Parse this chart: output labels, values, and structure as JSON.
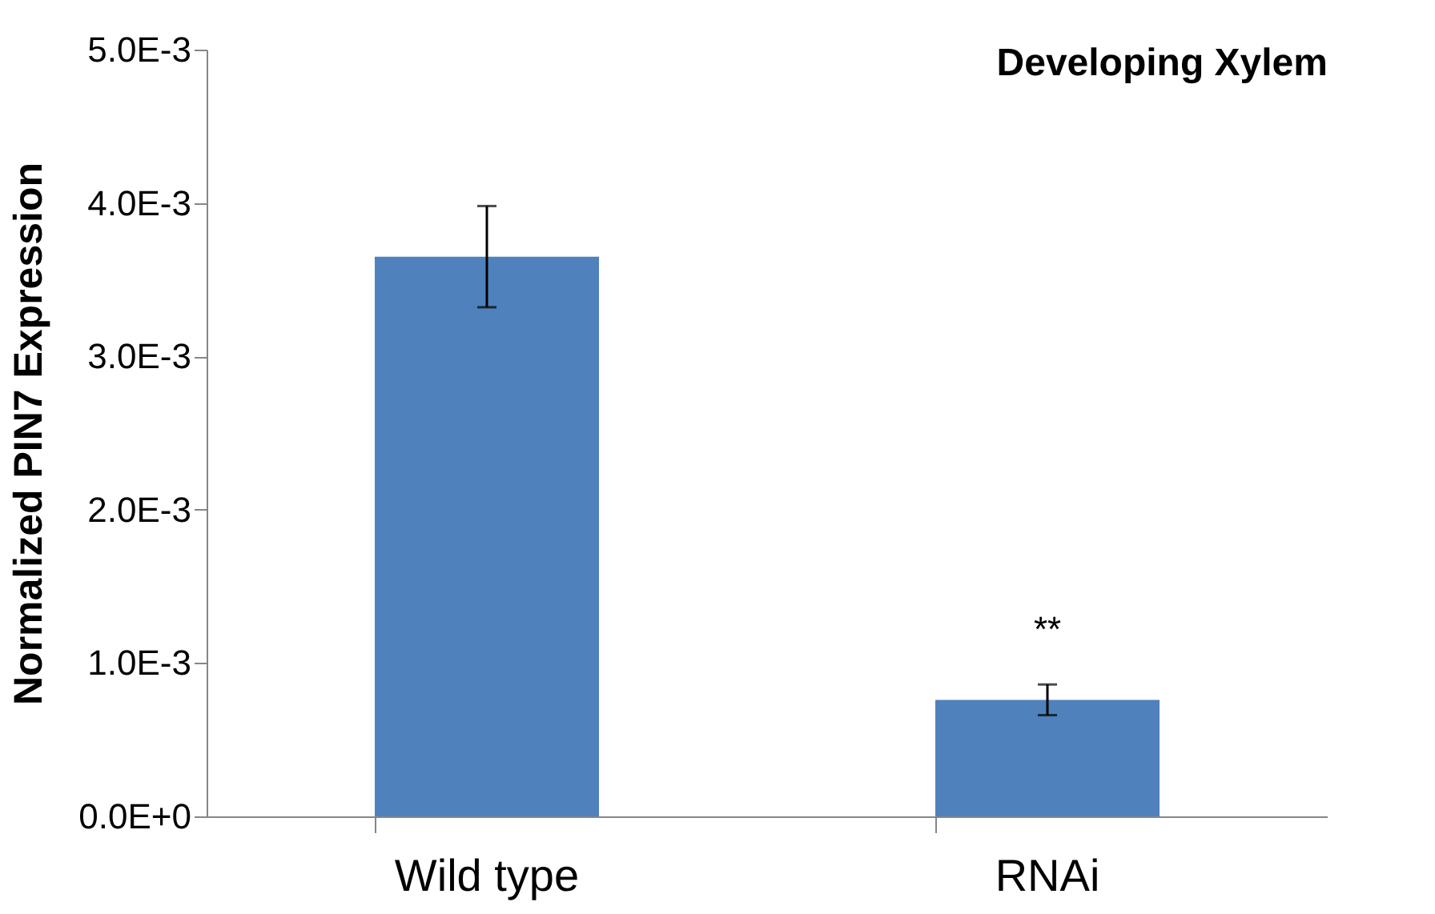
{
  "chart_data": {
    "type": "bar",
    "title": "Developing Xylem",
    "ylabel": "Normalized PIN7 Expression",
    "categories": [
      "Wild type",
      "RNAi"
    ],
    "values": [
      0.00365,
      0.00076
    ],
    "errors": [
      0.00033,
      0.0001
    ],
    "color": "#4f81bd",
    "ylim": [
      0,
      0.005
    ],
    "yticks": [
      {
        "value": 0,
        "label": "0.0E+0"
      },
      {
        "value": 0.001,
        "label": "1.0E-3"
      },
      {
        "value": 0.002,
        "label": "2.0E-3"
      },
      {
        "value": 0.003,
        "label": "3.0E-3"
      },
      {
        "value": 0.004,
        "label": "4.0E-3"
      },
      {
        "value": 0.005,
        "label": "5.0E-3"
      }
    ],
    "annotations": [
      "**"
    ],
    "grid": false
  }
}
